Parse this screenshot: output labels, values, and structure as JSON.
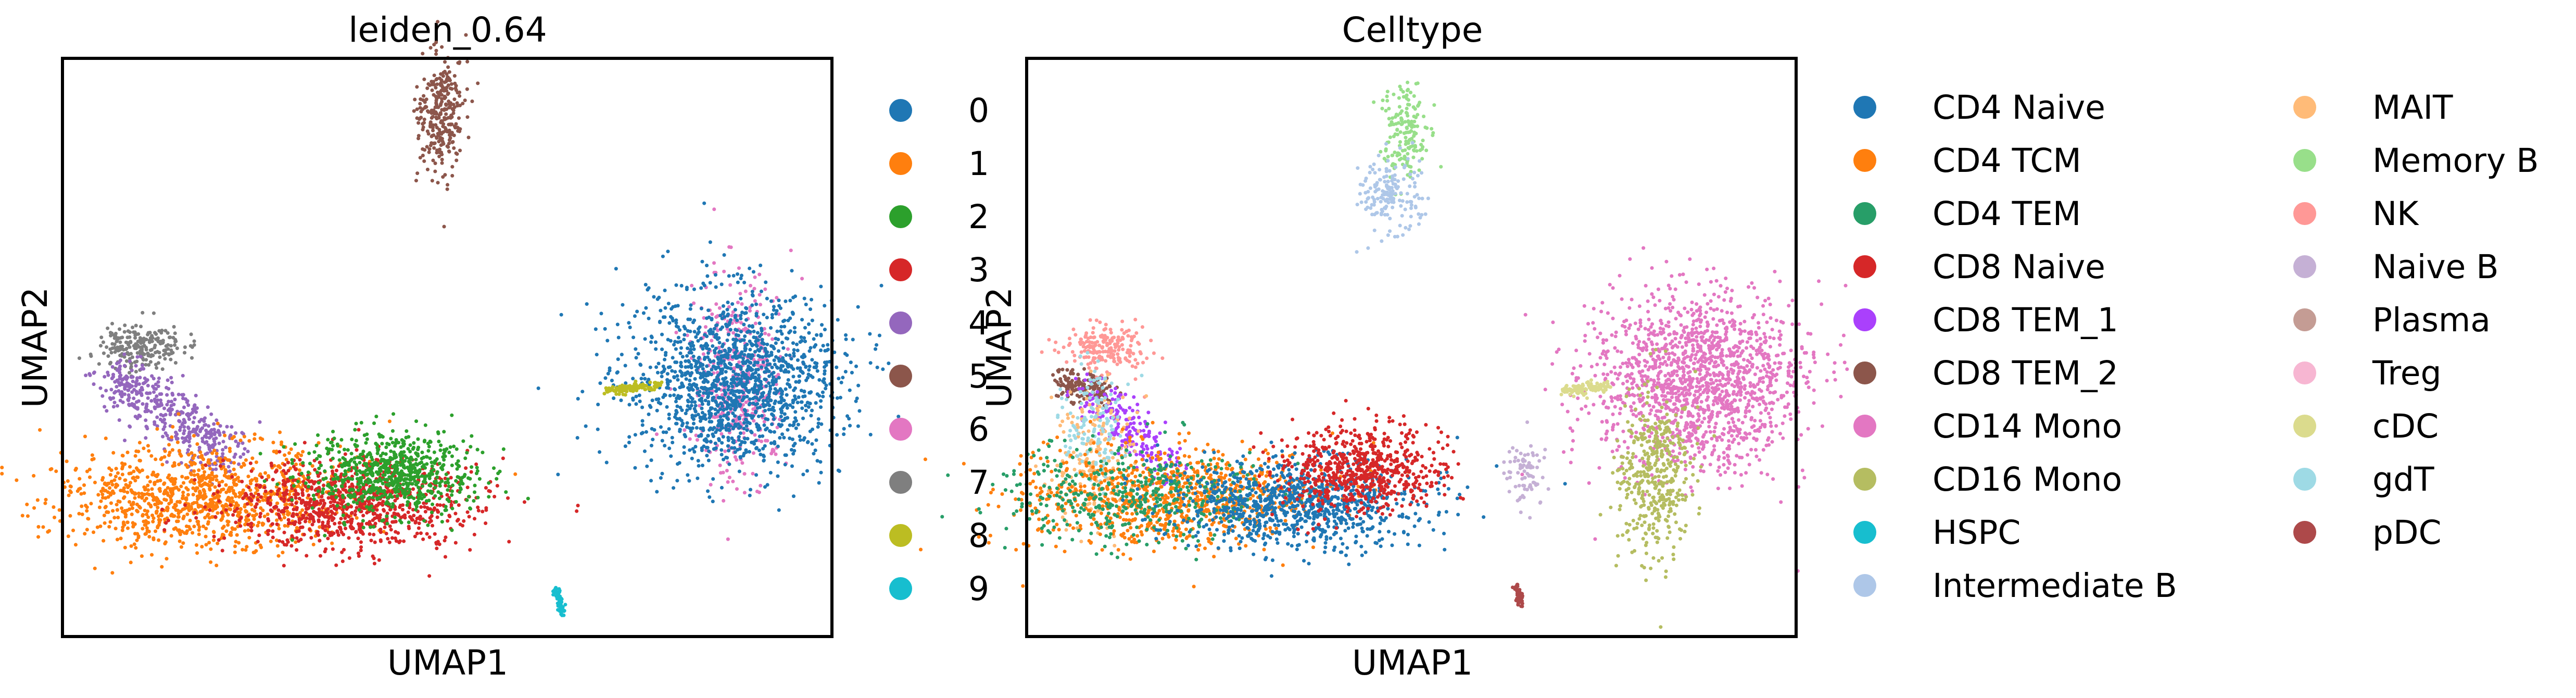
{
  "chart_data": [
    {
      "type": "scatter",
      "title": "leiden_0.64",
      "xlabel": "UMAP1",
      "ylabel": "UMAP2",
      "ticks": false,
      "grid": false,
      "legend_position": "right",
      "legend_columns": 1,
      "series": [
        {
          "name": "0",
          "color": "#1f77b4"
        },
        {
          "name": "1",
          "color": "#ff7f0e"
        },
        {
          "name": "2",
          "color": "#2ca02c"
        },
        {
          "name": "3",
          "color": "#d62728"
        },
        {
          "name": "4",
          "color": "#9467bd"
        },
        {
          "name": "5",
          "color": "#8c564b"
        },
        {
          "name": "6",
          "color": "#e377c2"
        },
        {
          "name": "7",
          "color": "#7f7f7f"
        },
        {
          "name": "8",
          "color": "#bcbd22"
        },
        {
          "name": "9",
          "color": "#17becf"
        }
      ]
    },
    {
      "type": "scatter",
      "title": "Celltype",
      "xlabel": "UMAP1",
      "ylabel": "UMAP2",
      "ticks": false,
      "grid": false,
      "legend_position": "right",
      "legend_columns": 2,
      "series": [
        {
          "name": "CD4 Naive",
          "color": "#1f77b4"
        },
        {
          "name": "CD4 TCM",
          "color": "#ff7f0e"
        },
        {
          "name": "CD4 TEM",
          "color": "#279e68"
        },
        {
          "name": "CD8 Naive",
          "color": "#d62728"
        },
        {
          "name": "CD8 TEM_1",
          "color": "#aa40fc"
        },
        {
          "name": "CD8 TEM_2",
          "color": "#8c564b"
        },
        {
          "name": "CD14 Mono",
          "color": "#e377c2"
        },
        {
          "name": "CD16 Mono",
          "color": "#b5bd61"
        },
        {
          "name": "HSPC",
          "color": "#17becf"
        },
        {
          "name": "Intermediate B",
          "color": "#aec7e8"
        },
        {
          "name": "MAIT",
          "color": "#ffbb78"
        },
        {
          "name": "Memory B",
          "color": "#98df8a"
        },
        {
          "name": "NK",
          "color": "#ff9896"
        },
        {
          "name": "Naive B",
          "color": "#c5b0d5"
        },
        {
          "name": "Plasma",
          "color": "#c49c94"
        },
        {
          "name": "Treg",
          "color": "#f7b6d2"
        },
        {
          "name": "cDC",
          "color": "#dbdb8d"
        },
        {
          "name": "gdT",
          "color": "#9edae5"
        },
        {
          "name": "pDC",
          "color": "#ad494a"
        }
      ]
    }
  ]
}
